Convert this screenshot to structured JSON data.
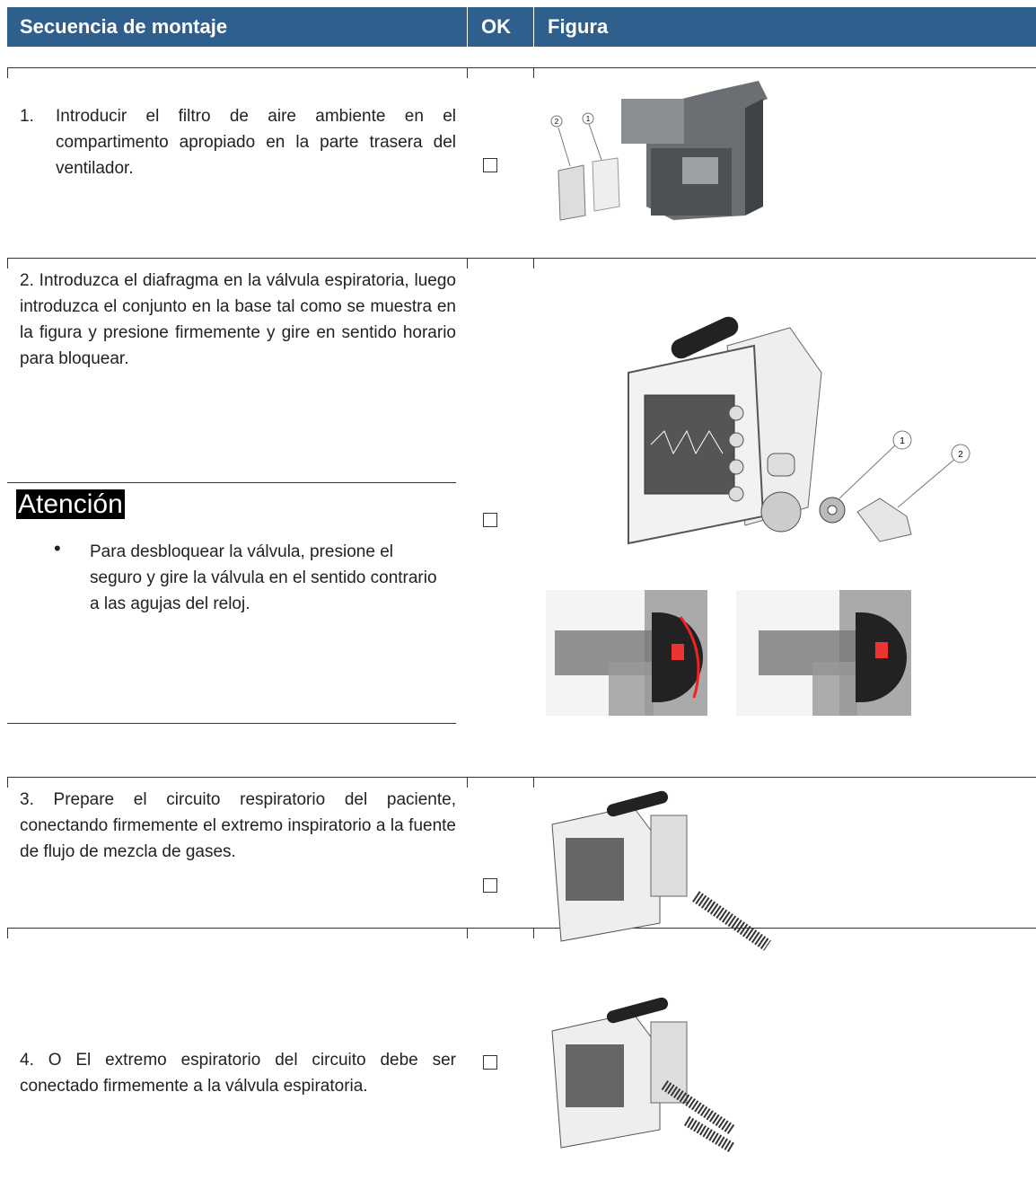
{
  "header": {
    "sequence": "Secuencia de montaje",
    "ok": "OK",
    "figure": "Figura"
  },
  "rows": [
    {
      "number": "1.",
      "text": "Introducir el filtro de aire ambiente en el compartimento apropiado en la parte trasera del ventilador.",
      "callouts": [
        "2",
        "1"
      ]
    },
    {
      "text": "2. Introduzca el diafragma en la válvula espiratoria, luego introduzca el conjunto en la base tal como se muestra en la figura y presione firmemente y gire en sentido horario para bloquear.",
      "warning_title": "Atención",
      "warning_items": [
        "Para desbloquear la válvula, presione el seguro y gire la válvula en el sentido contrario a las agujas del reloj."
      ],
      "callouts": [
        "1",
        "2"
      ]
    },
    {
      "text": "3. Prepare el circuito respiratorio del paciente, conectando firmemente el extremo inspiratorio a la fuente de flujo de mezcla de gases."
    },
    {
      "text": "4. O El extremo espiratorio del circuito debe ser conectado firmemente a la válvula espiratoria."
    }
  ]
}
